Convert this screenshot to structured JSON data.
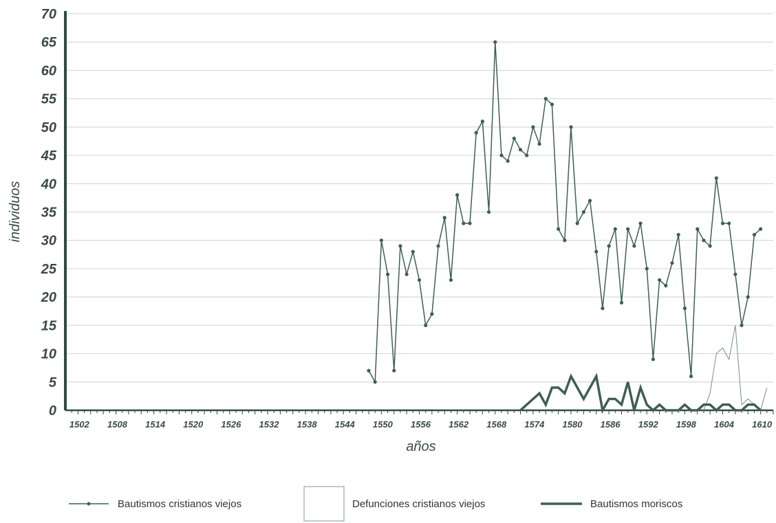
{
  "chart_data": {
    "type": "line",
    "xlabel": "años",
    "ylabel": "individuos",
    "ylim": [
      0,
      70
    ],
    "yticks": [
      0,
      5,
      10,
      15,
      20,
      25,
      30,
      35,
      40,
      45,
      50,
      55,
      60,
      65,
      70
    ],
    "xlim": [
      1500,
      1612
    ],
    "xticks": [
      1502,
      1508,
      1514,
      1520,
      1526,
      1532,
      1538,
      1544,
      1550,
      1556,
      1562,
      1568,
      1574,
      1580,
      1586,
      1592,
      1598,
      1604,
      1610
    ],
    "grid": true,
    "legend_position": "bottom",
    "colors": {
      "main": "#3e5f52",
      "thin": "#7d9a8e",
      "grid": "#d9d9d9",
      "axis": "#2f4a40"
    },
    "series": [
      {
        "name": "Bautismos cristianos viejos",
        "style": "line-markers",
        "x": [
          1548,
          1549,
          1550,
          1551,
          1552,
          1553,
          1554,
          1555,
          1556,
          1557,
          1558,
          1559,
          1560,
          1561,
          1562,
          1563,
          1564,
          1565,
          1566,
          1567,
          1568,
          1569,
          1570,
          1571,
          1572,
          1573,
          1574,
          1575,
          1576,
          1577,
          1578,
          1579,
          1580,
          1581,
          1582,
          1583,
          1584,
          1585,
          1586,
          1587,
          1588,
          1589,
          1590,
          1591,
          1592,
          1593,
          1594,
          1595,
          1596,
          1597,
          1598,
          1599,
          1600,
          1601,
          1602,
          1603,
          1604,
          1605,
          1606,
          1607,
          1608,
          1609,
          1610
        ],
        "values": [
          7,
          5,
          30,
          24,
          7,
          29,
          24,
          28,
          23,
          15,
          17,
          29,
          34,
          23,
          38,
          33,
          33,
          49,
          51,
          35,
          65,
          45,
          44,
          48,
          46,
          45,
          50,
          47,
          55,
          54,
          32,
          30,
          50,
          33,
          35,
          37,
          28,
          18,
          29,
          32,
          19,
          32,
          29,
          33,
          25,
          9,
          23,
          22,
          26,
          31,
          18,
          6,
          32,
          30,
          29,
          41,
          33,
          33,
          24,
          15,
          20,
          31,
          32
        ]
      },
      {
        "name": "Defunciones cristianos viejos",
        "style": "thin-line",
        "x": [
          1601,
          1602,
          1603,
          1604,
          1605,
          1606,
          1607,
          1608,
          1609,
          1610,
          1611
        ],
        "values": [
          0,
          3,
          10,
          11,
          9,
          15,
          1,
          2,
          1,
          0,
          4
        ]
      },
      {
        "name": "Bautismos moriscos",
        "style": "thick-line",
        "x": [
          1572,
          1573,
          1574,
          1575,
          1576,
          1577,
          1578,
          1579,
          1580,
          1581,
          1582,
          1583,
          1584,
          1585,
          1586,
          1587,
          1588,
          1589,
          1590,
          1591,
          1592,
          1593,
          1594,
          1595,
          1596,
          1597,
          1598,
          1599,
          1600,
          1601,
          1602,
          1603,
          1604,
          1605,
          1606,
          1607,
          1608,
          1609,
          1610
        ],
        "values": [
          0,
          1,
          2,
          3,
          1,
          4,
          4,
          3,
          6,
          4,
          2,
          4,
          6,
          0,
          2,
          2,
          1,
          5,
          0,
          4,
          1,
          0,
          1,
          0,
          0,
          0,
          1,
          0,
          0,
          1,
          1,
          0,
          1,
          1,
          0,
          0,
          1,
          1,
          0
        ]
      }
    ]
  }
}
